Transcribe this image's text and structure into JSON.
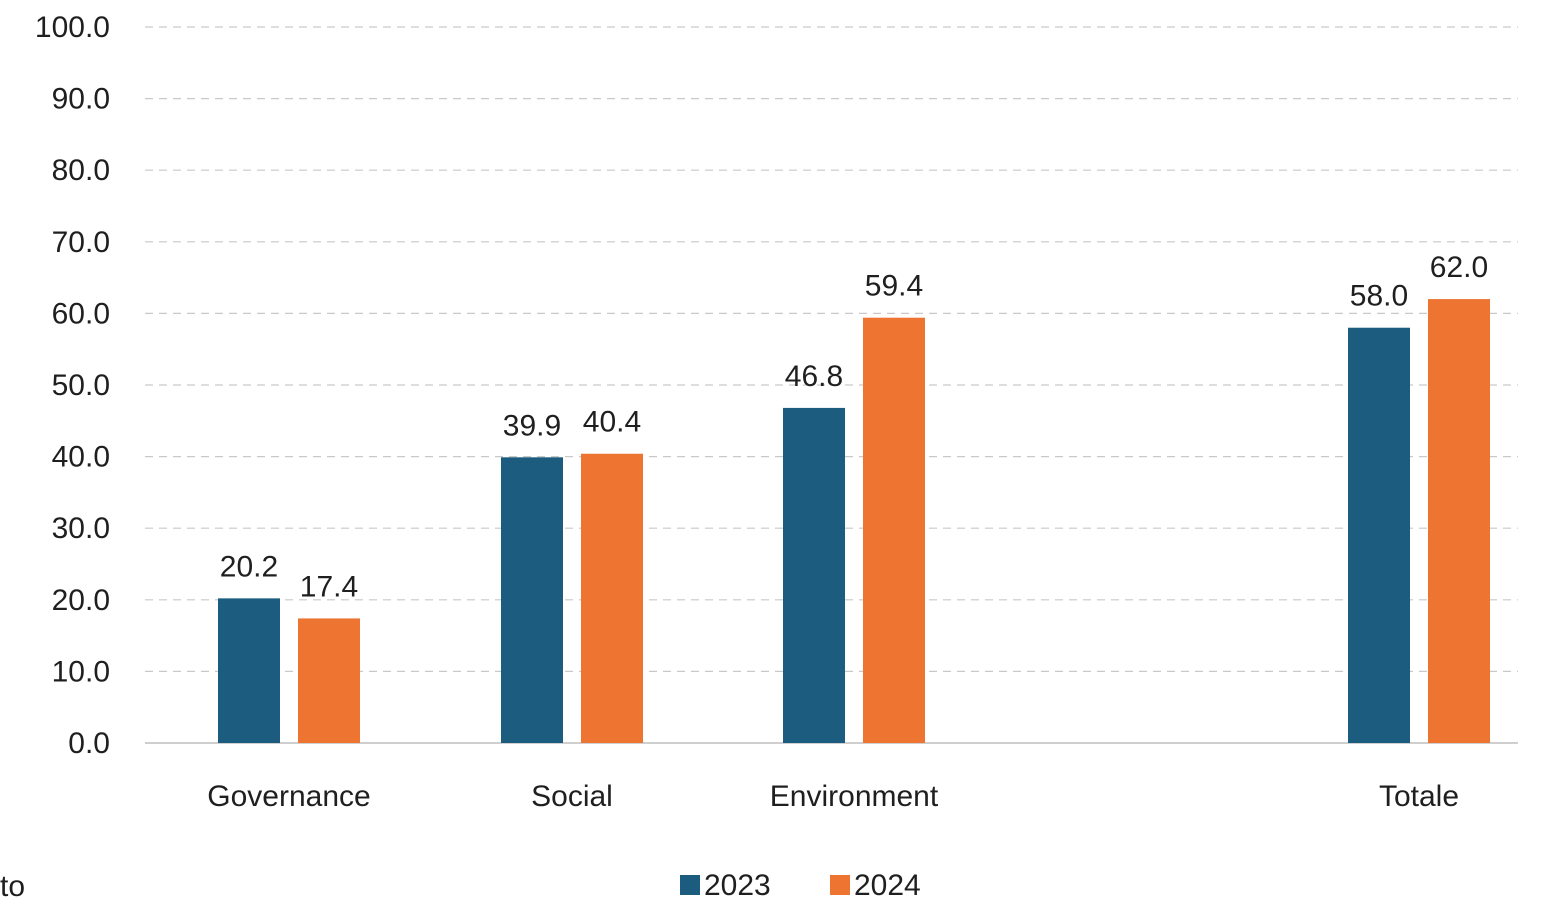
{
  "colors": {
    "series_2023": "#1b5c7f",
    "series_2024": "#ed7431",
    "grid": "#c9c9c9",
    "text": "#1f1f1f"
  },
  "corner_text": "to",
  "chart_data": {
    "type": "bar",
    "title": "",
    "xlabel": "",
    "ylabel": "",
    "ylim": [
      0,
      100
    ],
    "y_ticks": [
      "0.0",
      "10.0",
      "20.0",
      "30.0",
      "40.0",
      "50.0",
      "60.0",
      "70.0",
      "80.0",
      "90.0",
      "100.0"
    ],
    "categories": [
      "Governance",
      "Social",
      "Environment",
      "Totale"
    ],
    "series": [
      {
        "name": "2023",
        "values": [
          20.2,
          39.9,
          46.8,
          58.0
        ],
        "labels": [
          "20.2",
          "39.9",
          "46.8",
          "58.0"
        ]
      },
      {
        "name": "2024",
        "values": [
          17.4,
          40.4,
          59.4,
          62.0
        ],
        "labels": [
          "17.4",
          "40.4",
          "59.4",
          "62.0"
        ]
      }
    ],
    "grid": true,
    "legend_position": "bottom-center"
  }
}
